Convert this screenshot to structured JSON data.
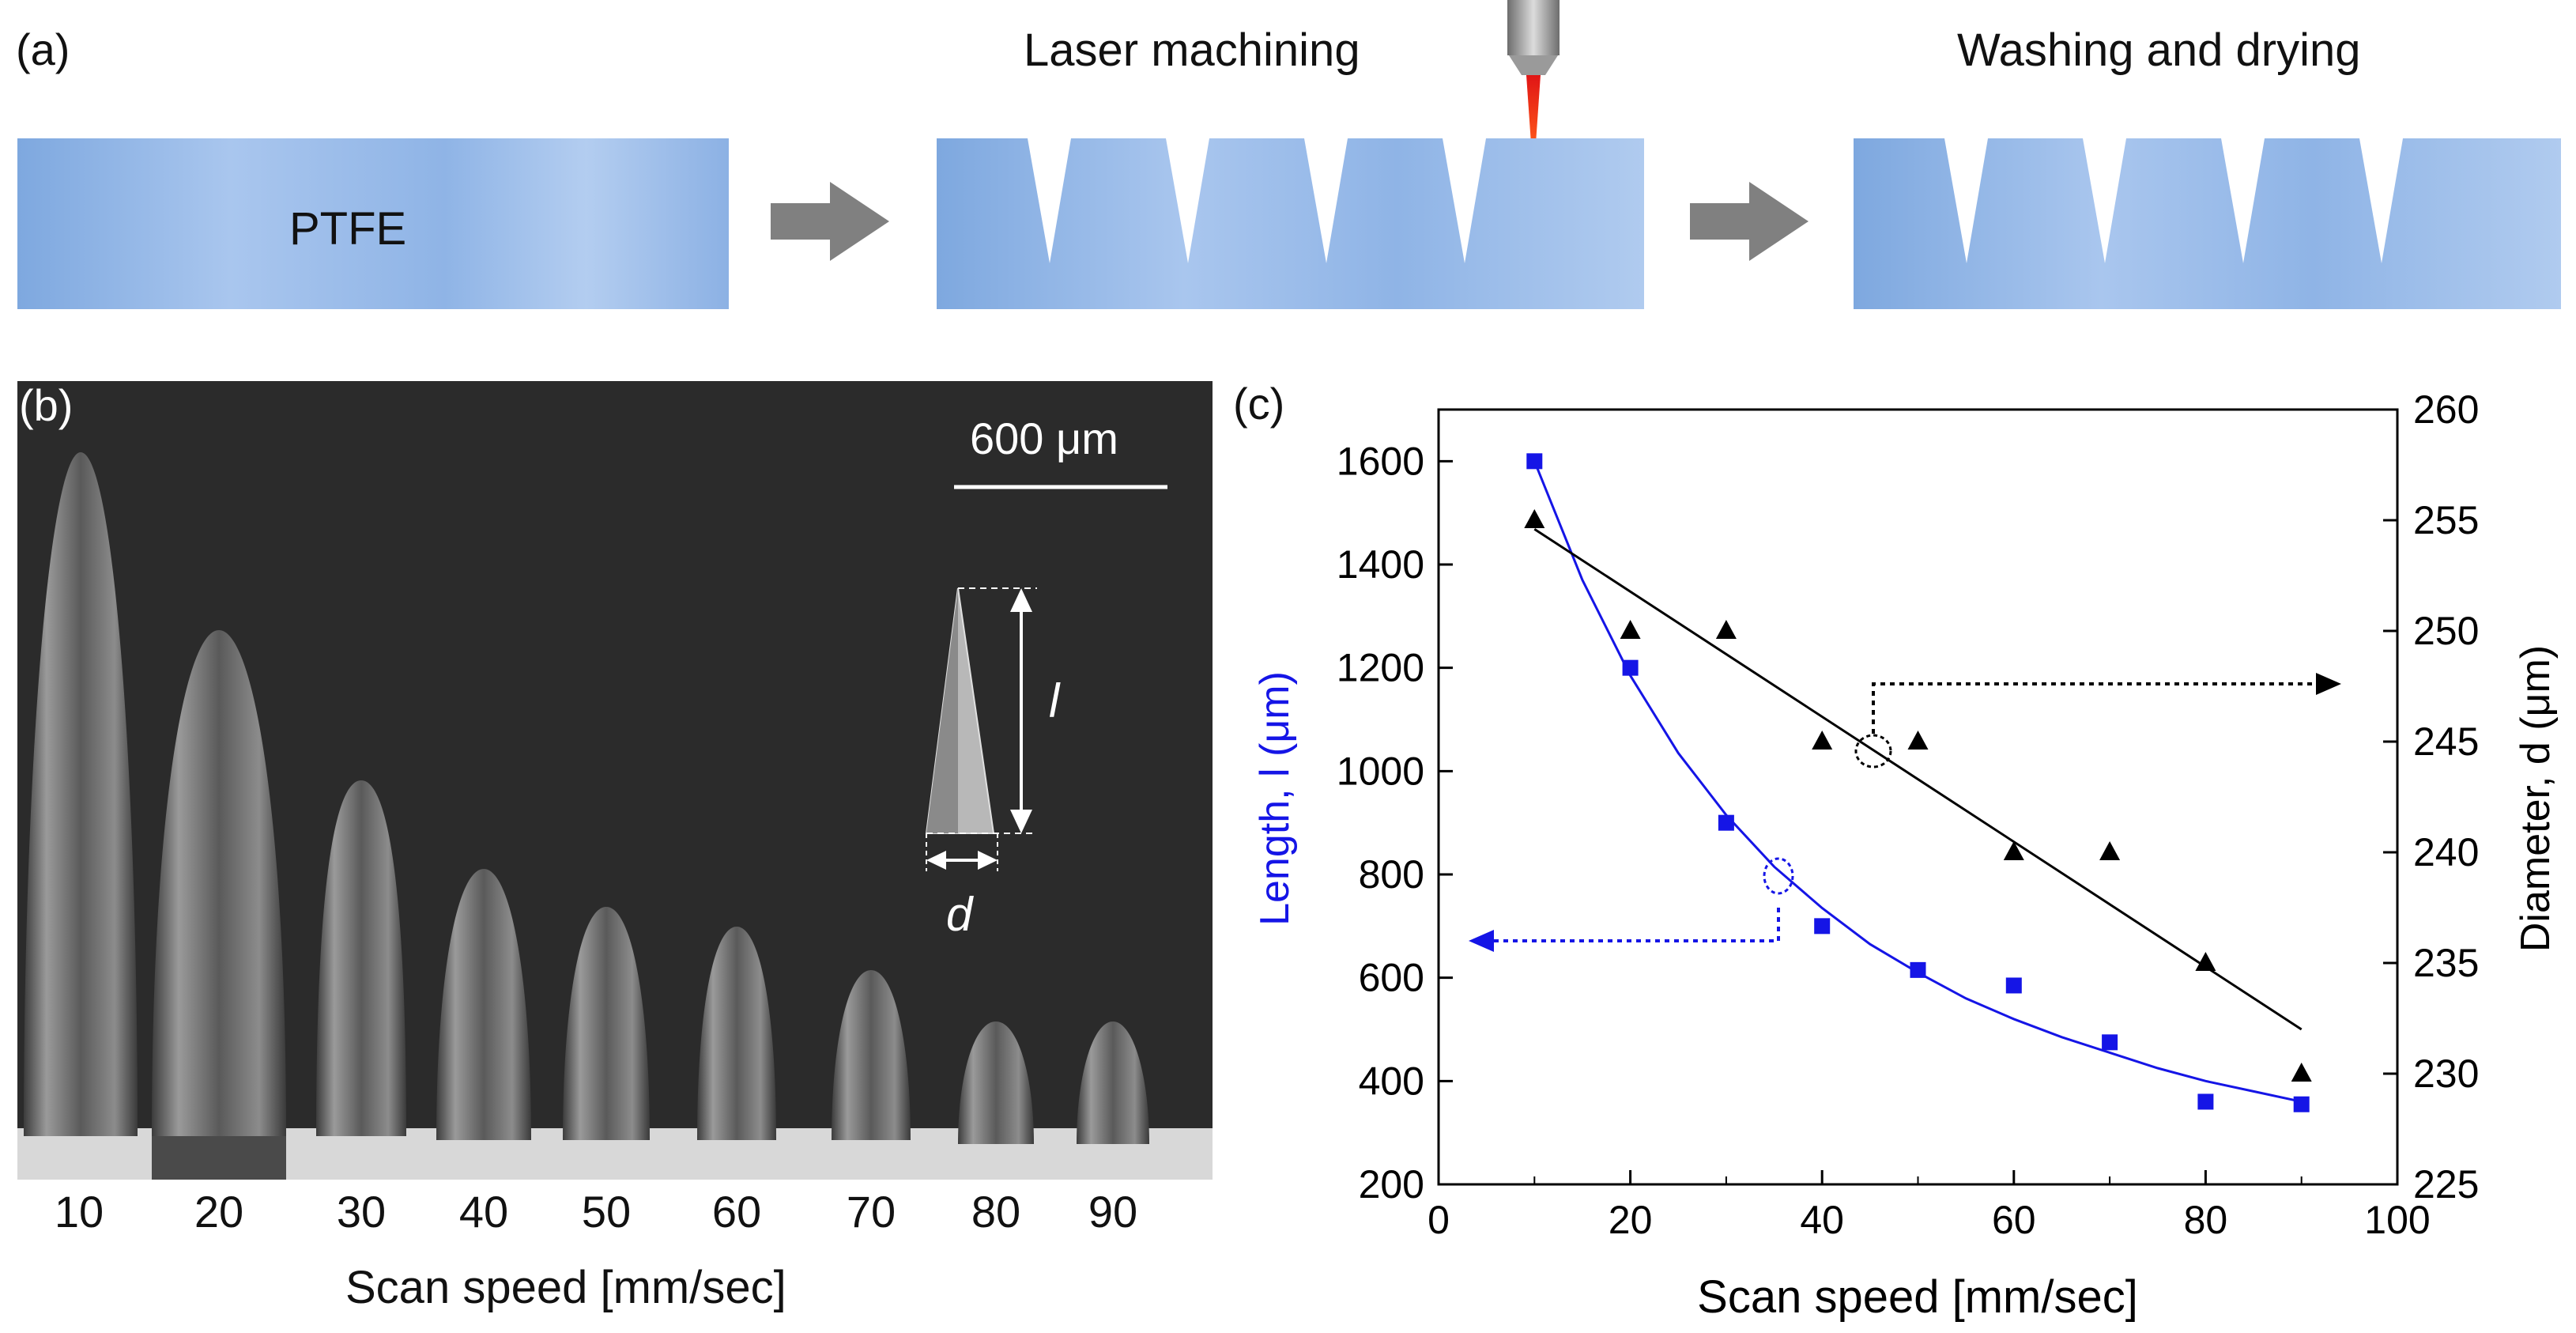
{
  "panel_a": {
    "label": "(a)",
    "step1_material": "PTFE",
    "step2_title": "Laser machining",
    "step3_title": "Washing and drying",
    "colors": {
      "slab": "#8fb4e6",
      "arrow": "#808080",
      "laser": "#e02020"
    }
  },
  "panel_b": {
    "label": "(b)",
    "scale_bar": "600 μm",
    "inset_length_symbol": "l",
    "inset_diameter_symbol": "d",
    "tick_labels": [
      "10",
      "20",
      "30",
      "40",
      "50",
      "60",
      "70",
      "80",
      "90"
    ],
    "xlabel": "Scan speed [mm/sec]"
  },
  "panel_c": {
    "label": "(c)"
  },
  "chart_data": {
    "type": "scatter",
    "title": "",
    "xlabel": "Scan speed [mm/sec]",
    "ylabel_left": "Length, l (μm)",
    "ylabel_right": "Diameter, d (μm)",
    "xlim": [
      0,
      100
    ],
    "ylim_left": [
      200,
      1700
    ],
    "ylim_right": [
      225,
      260
    ],
    "xticks": [
      0,
      20,
      40,
      60,
      80,
      100
    ],
    "yticks_left": [
      200,
      400,
      600,
      800,
      1000,
      1200,
      1400,
      1600
    ],
    "yticks_right": [
      225,
      230,
      235,
      240,
      245,
      250,
      255,
      260
    ],
    "series": [
      {
        "name": "Length",
        "axis": "left",
        "marker": "square",
        "color": "#1515e6",
        "x": [
          10,
          20,
          30,
          40,
          50,
          60,
          70,
          80,
          90
        ],
        "values": [
          1600,
          1200,
          900,
          700,
          615,
          585,
          475,
          360,
          355
        ],
        "fit": "exponential",
        "fit_x": [
          10,
          15,
          20,
          25,
          30,
          35,
          40,
          45,
          50,
          55,
          60,
          65,
          70,
          75,
          80,
          85,
          90
        ],
        "fit_values": [
          1600,
          1370,
          1185,
          1035,
          915,
          815,
          735,
          665,
          610,
          560,
          520,
          485,
          455,
          425,
          400,
          380,
          360
        ]
      },
      {
        "name": "Diameter",
        "axis": "right",
        "marker": "triangle",
        "color": "#000000",
        "x": [
          10,
          20,
          30,
          40,
          50,
          60,
          70,
          80,
          90
        ],
        "values": [
          255,
          250,
          250,
          245,
          245,
          240,
          240,
          235,
          230
        ],
        "fit": "linear",
        "fit_x": [
          10,
          90
        ],
        "fit_values": [
          254.6,
          232
        ]
      }
    ]
  }
}
